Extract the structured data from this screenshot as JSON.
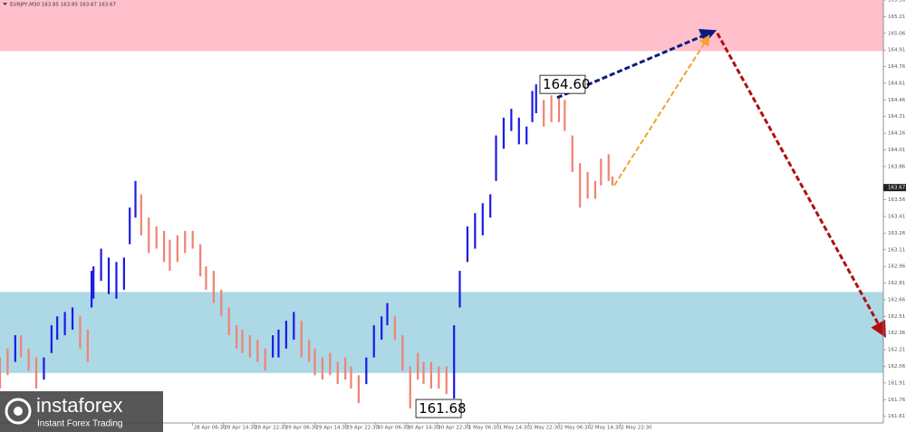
{
  "chart_data": {
    "type": "range_bar",
    "header": "EURJPY,M30 163.85 163.85 163.67 163.67",
    "up_color": "#1a1ae6",
    "down_color": "#f08272",
    "x": [
      0,
      4,
      8,
      11,
      15,
      19,
      23,
      27,
      30,
      34,
      38,
      42,
      46,
      48,
      49,
      53,
      57,
      61,
      65,
      68,
      71,
      74,
      78,
      82,
      86,
      89,
      93,
      97,
      101,
      105,
      108,
      112,
      116,
      120,
      124,
      127,
      131,
      135,
      139,
      143,
      146,
      150,
      154,
      158,
      162,
      165,
      169,
      173,
      177,
      181,
      184,
      188,
      192,
      196,
      200,
      203,
      207,
      211,
      215,
      219,
      222,
      226,
      230,
      234,
      238,
      241,
      245,
      249,
      253,
      257,
      260,
      264,
      268,
      272,
      276,
      279,
      281,
      285,
      289,
      293,
      296,
      300,
      304,
      308,
      312,
      315,
      319,
      321
    ],
    "high": [
      162.14,
      162.22,
      162.34,
      162.34,
      162.22,
      162.14,
      162.14,
      162.43,
      162.51,
      162.55,
      162.59,
      162.51,
      162.39,
      162.92,
      162.96,
      163.12,
      163.04,
      163.0,
      163.04,
      163.49,
      163.73,
      163.61,
      163.4,
      163.32,
      163.28,
      163.2,
      163.24,
      163.28,
      163.28,
      163.16,
      162.96,
      162.92,
      162.75,
      162.59,
      162.43,
      162.39,
      162.34,
      162.3,
      162.22,
      162.34,
      162.39,
      162.47,
      162.55,
      162.47,
      162.3,
      162.22,
      162.14,
      162.18,
      162.1,
      162.14,
      162.06,
      161.98,
      162.14,
      162.43,
      162.51,
      162.63,
      162.51,
      162.34,
      162.06,
      162.18,
      162.1,
      162.1,
      162.06,
      162.06,
      162.43,
      162.92,
      163.32,
      163.44,
      163.53,
      163.61,
      164.14,
      164.3,
      164.38,
      164.3,
      164.22,
      164.54,
      164.6,
      164.46,
      164.5,
      164.5,
      164.46,
      164.14,
      163.89,
      163.81,
      163.73,
      163.93,
      163.97,
      163.77
    ],
    "low": [
      161.86,
      161.98,
      162.1,
      162.14,
      162.02,
      161.86,
      161.94,
      162.18,
      162.3,
      162.34,
      162.39,
      162.22,
      162.1,
      162.59,
      162.67,
      162.83,
      162.71,
      162.67,
      162.75,
      163.16,
      163.4,
      163.24,
      163.08,
      163.12,
      163.0,
      162.92,
      163.0,
      163.08,
      163.12,
      162.87,
      162.75,
      162.63,
      162.51,
      162.34,
      162.22,
      162.18,
      162.14,
      162.1,
      162.02,
      162.14,
      162.14,
      162.22,
      162.3,
      162.14,
      162.1,
      161.98,
      161.94,
      161.98,
      161.9,
      161.94,
      161.86,
      161.73,
      161.9,
      162.14,
      162.3,
      162.43,
      162.3,
      162.02,
      161.68,
      161.94,
      161.9,
      161.86,
      161.86,
      161.81,
      161.77,
      162.59,
      163.0,
      163.12,
      163.24,
      163.4,
      163.73,
      164.02,
      164.18,
      164.06,
      164.06,
      164.26,
      164.34,
      164.22,
      164.26,
      164.26,
      164.18,
      163.81,
      163.49,
      163.57,
      163.57,
      163.69,
      163.73,
      163.69
    ],
    "direction": [
      "down",
      "down",
      "up",
      "down",
      "down",
      "down",
      "up",
      "up",
      "up",
      "up",
      "up",
      "down",
      "down",
      "up",
      "up",
      "up",
      "up",
      "up",
      "up",
      "up",
      "up",
      "down",
      "down",
      "down",
      "down",
      "down",
      "down",
      "down",
      "down",
      "down",
      "down",
      "down",
      "down",
      "down",
      "down",
      "down",
      "down",
      "down",
      "down",
      "up",
      "up",
      "up",
      "up",
      "down",
      "down",
      "down",
      "down",
      "down",
      "down",
      "down",
      "down",
      "down",
      "up",
      "up",
      "up",
      "up",
      "down",
      "down",
      "down",
      "down",
      "down",
      "down",
      "down",
      "down",
      "up",
      "up",
      "up",
      "up",
      "up",
      "up",
      "up",
      "up",
      "up",
      "up",
      "up",
      "up",
      "up",
      "down",
      "down",
      "down",
      "down",
      "down",
      "down",
      "down",
      "down",
      "down",
      "down",
      "down"
    ],
    "xlim": [
      0,
      463
    ],
    "ylim": [
      161.55,
      165.36
    ],
    "yticks": [
      165.36,
      165.21,
      165.06,
      164.91,
      164.76,
      164.61,
      164.46,
      164.31,
      164.16,
      164.01,
      163.86,
      163.56,
      163.41,
      163.26,
      163.11,
      162.96,
      162.81,
      162.66,
      162.51,
      162.36,
      162.21,
      162.06,
      161.91,
      161.76,
      161.61
    ],
    "xticks": [
      {
        "value": 101,
        "label": "28 Apr 06:30"
      },
      {
        "value": 117,
        "label": "28 Apr 14:30"
      },
      {
        "value": 133,
        "label": "28 Apr 22:30"
      },
      {
        "value": 149,
        "label": "29 Apr 06:30"
      },
      {
        "value": 165,
        "label": "29 Apr 14:30"
      },
      {
        "value": 181,
        "label": "29 Apr 22:30"
      },
      {
        "value": 197,
        "label": "30 Apr 06:30"
      },
      {
        "value": 213,
        "label": "30 Apr 14:30"
      },
      {
        "value": 229,
        "label": "30 Apr 22:30"
      },
      {
        "value": 245,
        "label": "1 May 06:30"
      },
      {
        "value": 261,
        "label": "1 May 14:30"
      },
      {
        "value": 277,
        "label": "1 May 22:30"
      },
      {
        "value": 293,
        "label": "2 May 06:30"
      },
      {
        "value": 309,
        "label": "2 May 14:30"
      },
      {
        "value": 325,
        "label": "2 May 22:30"
      }
    ],
    "zones": [
      {
        "range": [
          164.9,
          165.36
        ],
        "color": "#ffc0cb"
      },
      {
        "range": [
          162.0,
          162.73
        ],
        "color": "#add8e6"
      }
    ],
    "arrows": [
      {
        "x": [
          292,
          373
        ],
        "y": [
          164.48,
          165.07
        ],
        "color": "#0a1a80"
      },
      {
        "x": [
          322,
          371
        ],
        "y": [
          163.69,
          165.02
        ],
        "color": "#f5a030"
      },
      {
        "x": [
          376,
          463
        ],
        "y": [
          165.06,
          162.36
        ],
        "color": "#b01010"
      }
    ],
    "annotations": [
      {
        "text": "164.60",
        "x": 283,
        "y": 164.6
      },
      {
        "text": "161.68",
        "x": 218,
        "y": 161.68
      }
    ],
    "price_label": 163.67,
    "watermark": {
      "brand": "instaforex",
      "tagline": "Instant Forex Trading"
    }
  }
}
